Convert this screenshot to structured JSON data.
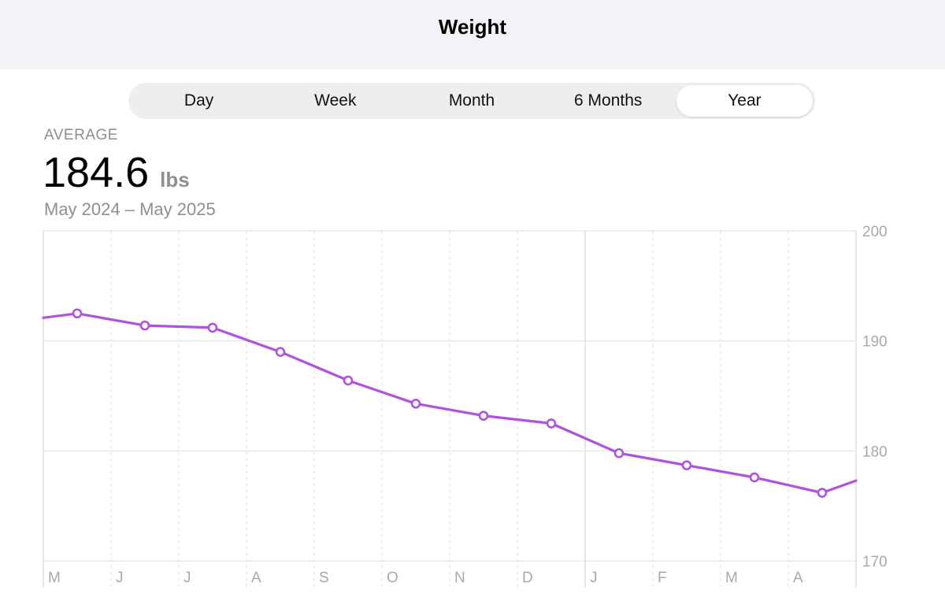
{
  "header": {
    "title": "Weight"
  },
  "tabs": [
    {
      "label": "Day",
      "selected": false
    },
    {
      "label": "Week",
      "selected": false
    },
    {
      "label": "Month",
      "selected": false
    },
    {
      "label": "6 Months",
      "selected": false
    },
    {
      "label": "Year",
      "selected": true
    }
  ],
  "summary": {
    "label": "AVERAGE",
    "value": "184.6",
    "unit": "lbs",
    "range": "May 2024 – May 2025"
  },
  "colors": {
    "line": "#af52de",
    "grid": "#e3e3e6",
    "tick": "#a8a8ad"
  },
  "chart_data": {
    "type": "line",
    "categories": [
      "M",
      "J",
      "J",
      "A",
      "S",
      "O",
      "N",
      "D",
      "J",
      "F",
      "M",
      "A"
    ],
    "y_ticks": [
      "200",
      "190",
      "180",
      "170"
    ],
    "ylim": [
      170,
      200
    ],
    "grid": true,
    "series": [
      {
        "values": [
          192.5,
          191.4,
          191.2,
          189.0,
          186.4,
          184.3,
          183.2,
          182.5,
          179.8,
          178.7,
          177.6,
          176.2
        ],
        "start_value": 192.1,
        "end_value": 177.3
      }
    ]
  }
}
